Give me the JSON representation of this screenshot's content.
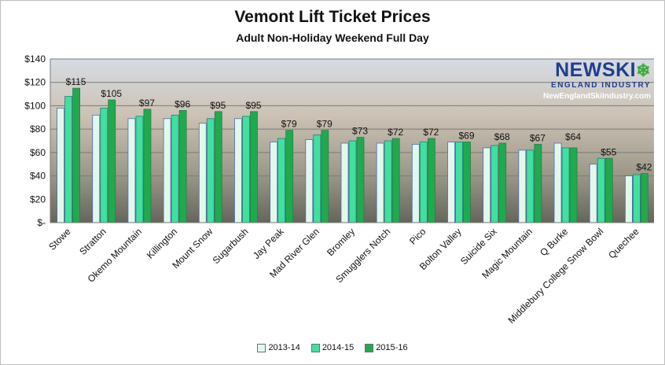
{
  "chart_data": {
    "type": "bar",
    "title": "Vemont Lift Ticket Prices",
    "subtitle": "Adult Non-Holiday Weekend Full Day",
    "categories": [
      "Stowe",
      "Stratton",
      "Okemo Mountain",
      "Killington",
      "Mount Snow",
      "Sugarbush",
      "Jay Peak",
      "Mad River Glen",
      "Bromley",
      "Smugglers Notch",
      "Pico",
      "Bolton Valley",
      "Suicide Six",
      "Magic Mountain",
      "Q Burke",
      "Middlebury College Snow Bowl",
      "Quechee"
    ],
    "series": [
      {
        "name": "2013-14",
        "color": "#e4f7ec",
        "values": [
          98,
          92,
          89,
          89,
          85,
          89,
          69,
          71,
          68,
          68,
          67,
          69,
          64,
          62,
          68,
          50,
          40
        ]
      },
      {
        "name": "2014-15",
        "color": "#3fe0a0",
        "values": [
          108,
          98,
          91,
          92,
          89,
          91,
          72,
          75,
          70,
          70,
          69,
          69,
          66,
          62,
          64,
          55,
          41
        ]
      },
      {
        "name": "2015-16",
        "color": "#1faa4f",
        "values": [
          115,
          105,
          97,
          96,
          95,
          95,
          79,
          79,
          73,
          72,
          72,
          69,
          68,
          67,
          64,
          55,
          42
        ]
      }
    ],
    "data_labels": [
      "$115",
      "$105",
      "$97",
      "$96",
      "$95",
      "$95",
      "$79",
      "$79",
      "$73",
      "$72",
      "$72",
      "$69",
      "$68",
      "$67",
      "$64",
      "$55",
      "$42"
    ],
    "y_ticks": [
      "$-",
      "$20",
      "$40",
      "$60",
      "$80",
      "$100",
      "$120",
      "$140"
    ],
    "ylim": [
      0,
      140
    ],
    "grid": true,
    "legend_position": "bottom"
  },
  "logo": {
    "main": "NEWSKI",
    "snowflake": "❄",
    "sub": "ENGLAND INDUSTRY",
    "url": "NewEnglandSkiIndustry.com"
  }
}
